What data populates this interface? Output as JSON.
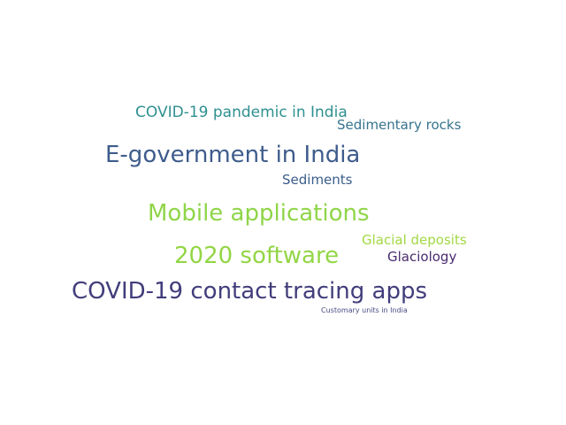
{
  "words": [
    {
      "text": "COVID-19 pandemic in India",
      "color": "#2f9090"
    },
    {
      "text": "Sedimentary rocks",
      "color": "#37738e"
    },
    {
      "text": "E-government in India",
      "color": "#3e5c8c"
    },
    {
      "text": "Sediments",
      "color": "#3b5d8b"
    },
    {
      "text": "Mobile applications",
      "color": "#8fd548"
    },
    {
      "text": "Glacial deposits",
      "color": "#a2d843"
    },
    {
      "text": "2020 software",
      "color": "#93d645"
    },
    {
      "text": "Glaciology",
      "color": "#482a6f"
    },
    {
      "text": "COVID-19 contact tracing apps",
      "color": "#423d7b"
    },
    {
      "text": "Customary units in India",
      "color": "#4b4a87"
    }
  ]
}
